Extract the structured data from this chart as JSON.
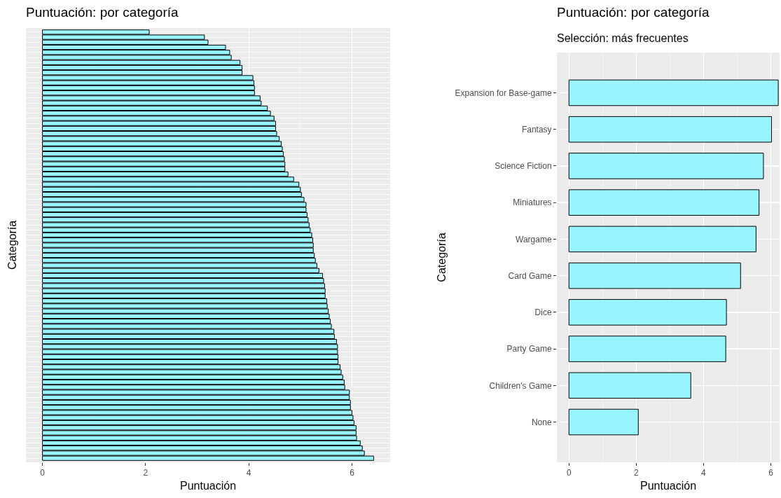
{
  "chart_data": [
    {
      "type": "bar",
      "orientation": "horizontal",
      "title": "Puntuación: por categoría",
      "xlabel": "Puntuación",
      "ylabel": "Categoría",
      "color": "#98f5ff",
      "grid": true,
      "tick_labels": "x",
      "xlim": [
        -0.32,
        6.74
      ],
      "xticks": [
        0,
        2,
        4,
        6
      ],
      "categories": [
        null,
        null,
        null,
        null,
        null,
        null,
        null,
        null,
        null,
        null,
        null,
        null,
        null,
        null,
        null,
        null,
        null,
        null,
        null,
        null,
        null,
        null,
        null,
        null,
        null,
        null,
        null,
        null,
        null,
        null,
        null,
        null,
        null,
        null,
        null,
        null,
        null,
        null,
        null,
        null,
        null,
        null,
        null,
        null,
        null,
        null,
        null,
        null,
        null,
        null,
        null,
        null,
        null,
        null,
        null,
        null,
        null,
        null,
        null,
        null,
        null,
        null,
        null,
        null,
        null,
        null,
        null,
        null,
        null,
        null,
        null,
        null,
        null,
        null,
        null,
        null,
        null,
        null,
        null,
        null,
        null,
        null,
        null,
        null,
        null
      ],
      "values": [
        2.07,
        3.14,
        3.21,
        3.55,
        3.63,
        3.66,
        3.83,
        3.87,
        3.87,
        4.08,
        4.1,
        4.11,
        4.11,
        4.22,
        4.24,
        4.36,
        4.42,
        4.49,
        4.52,
        4.52,
        4.54,
        4.59,
        4.63,
        4.65,
        4.67,
        4.69,
        4.7,
        4.7,
        4.76,
        4.87,
        4.97,
        5.0,
        5.02,
        5.07,
        5.11,
        5.11,
        5.13,
        5.15,
        5.17,
        5.19,
        5.22,
        5.24,
        5.25,
        5.25,
        5.27,
        5.29,
        5.32,
        5.36,
        5.43,
        5.45,
        5.47,
        5.48,
        5.48,
        5.51,
        5.52,
        5.54,
        5.56,
        5.58,
        5.6,
        5.65,
        5.66,
        5.7,
        5.72,
        5.72,
        5.73,
        5.73,
        5.77,
        5.79,
        5.82,
        5.85,
        5.86,
        5.95,
        5.95,
        5.97,
        5.97,
        6.0,
        6.02,
        6.04,
        6.08,
        6.08,
        6.09,
        6.16,
        6.2,
        6.24,
        6.42
      ]
    },
    {
      "type": "bar",
      "orientation": "horizontal",
      "title": "Puntuación: por categoría",
      "subtitle": "Selección: más frecuentes",
      "xlabel": "Puntuación",
      "ylabel": "Categoría",
      "color": "#98f5ff",
      "grid": true,
      "xlim": [
        -0.36,
        6.26
      ],
      "xticks": [
        0,
        2,
        4,
        6
      ],
      "categories": [
        "Expansion for Base-game",
        "Fantasy",
        "Science Fiction",
        "Miniatures",
        "Wargame",
        "Card Game",
        "Dice",
        "Party Game",
        "Children's Game",
        "None"
      ],
      "values": [
        6.22,
        6.02,
        5.78,
        5.65,
        5.56,
        5.1,
        4.68,
        4.66,
        3.62,
        2.06
      ]
    }
  ]
}
